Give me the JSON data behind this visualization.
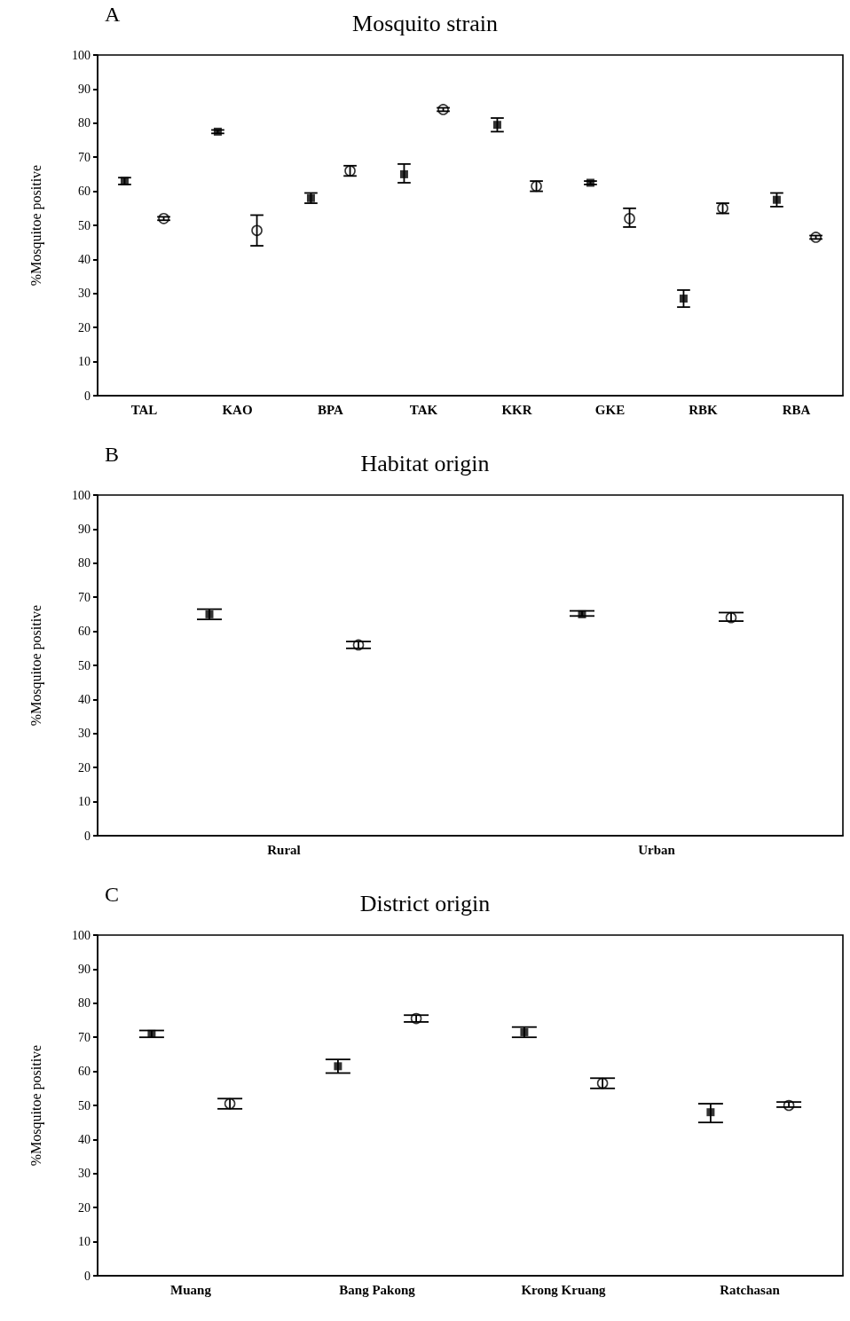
{
  "chart_data": [
    {
      "type": "scatter",
      "title": "Mosquito strain",
      "ylabel": "%Mosquitoe positive",
      "annotations": [
        "A"
      ],
      "categories": [
        "TAL",
        "KAO",
        "BPA",
        "TAK",
        "KKR",
        "GKE",
        "RBK",
        "RBA"
      ],
      "ylim": [
        0,
        100
      ],
      "yticks": [
        0,
        10,
        20,
        30,
        40,
        50,
        60,
        70,
        80,
        90,
        100
      ],
      "grid": false,
      "series": [
        {
          "color": "#000000",
          "marker": "square",
          "values": [
            63,
            77.5,
            58,
            65,
            79.5,
            62.5,
            28.5,
            57.5
          ],
          "errors": [
            [
              62,
              64
            ],
            [
              77,
              78
            ],
            [
              56.5,
              59.5
            ],
            [
              62.5,
              68
            ],
            [
              77.5,
              81.5
            ],
            [
              62,
              63
            ],
            [
              26,
              31
            ],
            [
              55.5,
              59.5
            ]
          ]
        },
        {
          "color": "#000000",
          "marker": "circle",
          "values": [
            52,
            48.5,
            66,
            84,
            61.5,
            52,
            55,
            46.5
          ],
          "errors": [
            [
              51.5,
              52.5
            ],
            [
              44,
              53
            ],
            [
              64.5,
              67.5
            ],
            [
              83.5,
              84.5
            ],
            [
              60,
              63
            ],
            [
              49.5,
              55
            ],
            [
              53.5,
              56.5
            ],
            [
              46,
              47
            ]
          ]
        }
      ]
    },
    {
      "type": "scatter",
      "title": "Habitat origin",
      "ylabel": "%Mosquitoe positive",
      "annotations": [
        "B"
      ],
      "categories": [
        "Rural",
        "Urban"
      ],
      "ylim": [
        0,
        100
      ],
      "yticks": [
        0,
        10,
        20,
        30,
        40,
        50,
        60,
        70,
        80,
        90,
        100
      ],
      "grid": false,
      "series": [
        {
          "color": "#000000",
          "marker": "square",
          "values": [
            65,
            65
          ],
          "errors": [
            [
              63.5,
              66.5
            ],
            [
              64.5,
              66
            ]
          ]
        },
        {
          "color": "#000000",
          "marker": "circle",
          "values": [
            56,
            64
          ],
          "errors": [
            [
              55,
              57
            ],
            [
              63,
              65.5
            ]
          ]
        }
      ]
    },
    {
      "type": "scatter",
      "title": "District origin",
      "ylabel": "%Mosquitoe positive",
      "annotations": [
        "C"
      ],
      "categories": [
        "Muang",
        "Bang Pakong",
        "Krong Kruang",
        "Ratchasan"
      ],
      "ylim": [
        0,
        100
      ],
      "yticks": [
        0,
        10,
        20,
        30,
        40,
        50,
        60,
        70,
        80,
        90,
        100
      ],
      "grid": false,
      "series": [
        {
          "color": "#000000",
          "marker": "square",
          "values": [
            71,
            61.5,
            71.5,
            48
          ],
          "errors": [
            [
              70,
              72
            ],
            [
              59.5,
              63.5
            ],
            [
              70,
              73
            ],
            [
              45,
              50.5
            ]
          ]
        },
        {
          "color": "#000000",
          "marker": "circle",
          "values": [
            50.5,
            75.5,
            56.5,
            50
          ],
          "errors": [
            [
              49,
              52
            ],
            [
              74.5,
              76.5
            ],
            [
              55,
              58
            ],
            [
              49.5,
              51
            ]
          ]
        }
      ]
    }
  ]
}
